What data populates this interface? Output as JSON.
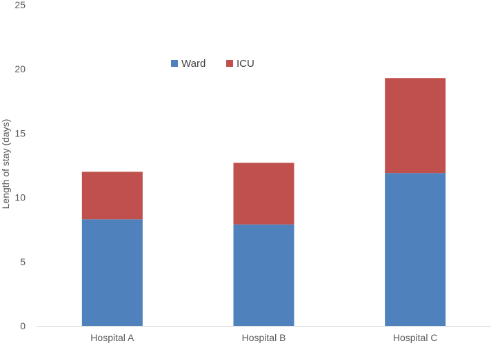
{
  "chart_data": {
    "type": "bar",
    "stacked": true,
    "title": "",
    "xlabel": "",
    "ylabel": "Length of stay (days)",
    "categories": [
      "Hospital A",
      "Hospital B",
      "Hospital C"
    ],
    "series": [
      {
        "name": "Ward",
        "values": [
          8.3,
          7.9,
          11.9
        ],
        "color": "#4f81bd"
      },
      {
        "name": "ICU",
        "values": [
          3.7,
          4.8,
          7.4
        ],
        "color": "#c0504d"
      }
    ],
    "ylim": [
      0,
      25
    ],
    "yticks": [
      0,
      5,
      10,
      15,
      20,
      25
    ],
    "grid": false,
    "legend_position": "top-center"
  }
}
